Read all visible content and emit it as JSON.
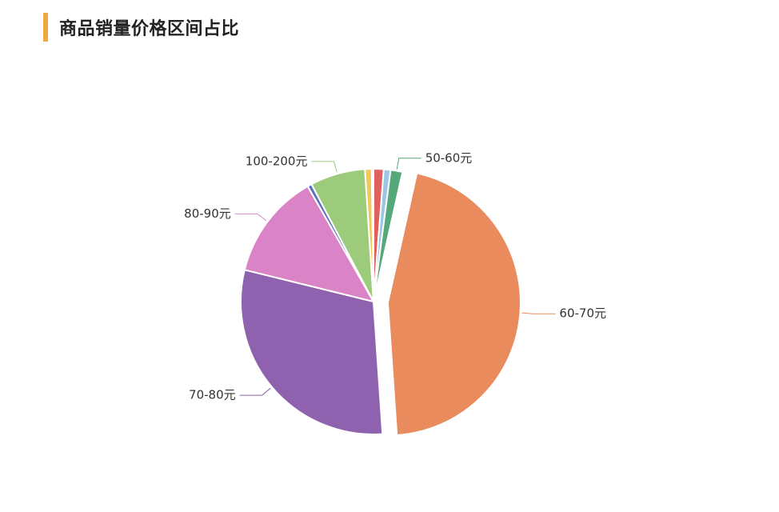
{
  "header": {
    "title": "商品销量价格区间占比",
    "accent_color": "#F0A844"
  },
  "chart_data": {
    "type": "pie",
    "title": "商品销量价格区间占比",
    "legend": "none",
    "slices": [
      {
        "label": "",
        "value": 1.2,
        "color": "#E0605E"
      },
      {
        "label": "",
        "value": 0.8,
        "color": "#9CC6E6"
      },
      {
        "label": "50-60元",
        "value": 1.4,
        "color": "#54A87A"
      },
      {
        "label": "60-70元",
        "value": 44.0,
        "color": "#EA8B5D"
      },
      {
        "label": "70-80元",
        "value": 29.0,
        "color": "#8E62AF"
      },
      {
        "label": "80-90元",
        "value": 12.5,
        "color": "#DA84C7"
      },
      {
        "label": "",
        "value": 0.5,
        "color": "#5C6FBE"
      },
      {
        "label": "100-200元",
        "value": 6.5,
        "color": "#9CCB7C"
      },
      {
        "label": "",
        "value": 0.8,
        "color": "#F2C85B"
      },
      {
        "label": "",
        "value": 0.2,
        "color": "#7A6AA8"
      }
    ]
  }
}
